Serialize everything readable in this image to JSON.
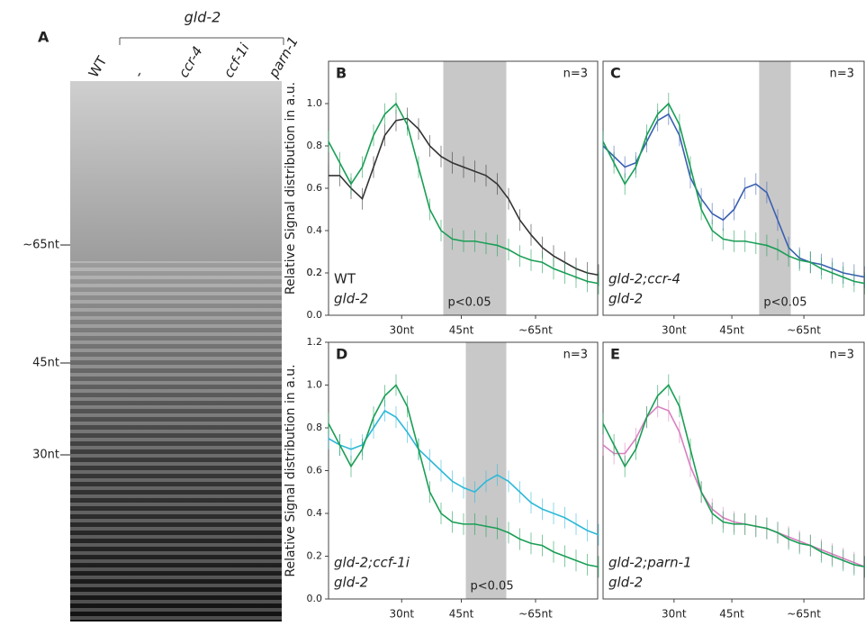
{
  "gel": {
    "panel": "A",
    "group_label": "gld-2",
    "lanes": [
      "WT",
      "-",
      "ccr-4",
      "ccf-1i",
      "parn-1"
    ],
    "markers": [
      "~65nt",
      "45nt",
      "30nt"
    ]
  },
  "chart_data": [
    {
      "type": "line",
      "panel": "B",
      "ylabel": "Relative Signal distribution in a.u.",
      "annotation": "n=3",
      "pvalue": "p<0.05",
      "shade": [
        10.2,
        15.8
      ],
      "x": [
        0,
        1,
        2,
        3,
        4,
        5,
        6,
        7,
        8,
        9,
        10,
        11,
        12,
        13,
        14,
        15,
        16,
        17,
        18,
        19,
        20,
        21,
        22,
        23,
        24
      ],
      "xlim": [
        0,
        24
      ],
      "xticks": [
        {
          "value": 6.5,
          "label": "30nt"
        },
        {
          "value": 11.8,
          "label": "45nt"
        },
        {
          "value": 18.4,
          "label": "~65nt"
        }
      ],
      "ylim": [
        0,
        1.2
      ],
      "yticks": [
        {
          "value": 0,
          "label": "0.0"
        },
        0.2,
        0.4,
        0.6,
        0.8,
        {
          "value": 1,
          "label": "1.0"
        },
        0.2
      ],
      "series": [
        {
          "name": "WT",
          "color": "#333333",
          "values": [
            0.66,
            0.66,
            0.6,
            0.55,
            0.7,
            0.85,
            0.92,
            0.93,
            0.88,
            0.8,
            0.75,
            0.72,
            0.7,
            0.68,
            0.66,
            0.62,
            0.55,
            0.45,
            0.38,
            0.32,
            0.28,
            0.25,
            0.22,
            0.2,
            0.19
          ]
        },
        {
          "name": "gld-2",
          "color": "#1a9e55",
          "values": [
            0.82,
            0.72,
            0.62,
            0.7,
            0.85,
            0.95,
            1.0,
            0.9,
            0.7,
            0.5,
            0.4,
            0.36,
            0.35,
            0.35,
            0.34,
            0.33,
            0.31,
            0.28,
            0.26,
            0.25,
            0.22,
            0.2,
            0.18,
            0.16,
            0.15
          ]
        }
      ]
    },
    {
      "type": "line",
      "panel": "C",
      "annotation": "n=3",
      "pvalue": "p<0.05",
      "shade": [
        14.3,
        17.2
      ],
      "x": [
        0,
        1,
        2,
        3,
        4,
        5,
        6,
        7,
        8,
        9,
        10,
        11,
        12,
        13,
        14,
        15,
        16,
        17,
        18,
        19,
        20,
        21,
        22,
        23,
        24
      ],
      "xlim": [
        0,
        24
      ],
      "xticks": [
        {
          "value": 6.5,
          "label": "30nt"
        },
        {
          "value": 11.8,
          "label": "45nt"
        },
        {
          "value": 18.4,
          "label": "~65nt"
        }
      ],
      "ylim": [
        0,
        1.2
      ],
      "series": [
        {
          "name": "gld-2;ccr-4",
          "color": "#3a5fb0",
          "values": [
            0.8,
            0.75,
            0.7,
            0.72,
            0.82,
            0.92,
            0.95,
            0.85,
            0.65,
            0.55,
            0.48,
            0.45,
            0.5,
            0.6,
            0.62,
            0.58,
            0.45,
            0.32,
            0.27,
            0.25,
            0.24,
            0.22,
            0.2,
            0.19,
            0.18
          ]
        },
        {
          "name": "gld-2",
          "color": "#1a9e55",
          "values": [
            0.82,
            0.72,
            0.62,
            0.7,
            0.85,
            0.95,
            1.0,
            0.9,
            0.7,
            0.5,
            0.4,
            0.36,
            0.35,
            0.35,
            0.34,
            0.33,
            0.31,
            0.28,
            0.26,
            0.25,
            0.22,
            0.2,
            0.18,
            0.16,
            0.15
          ]
        }
      ]
    },
    {
      "type": "line",
      "panel": "D",
      "ylabel": "Relative Signal distribution in a.u.",
      "annotation": "n=3",
      "pvalue": "p<0.05",
      "shade": [
        12.2,
        15.8
      ],
      "x": [
        0,
        1,
        2,
        3,
        4,
        5,
        6,
        7,
        8,
        9,
        10,
        11,
        12,
        13,
        14,
        15,
        16,
        17,
        18,
        19,
        20,
        21,
        22,
        23,
        24
      ],
      "xlim": [
        0,
        24
      ],
      "xticks": [
        {
          "value": 6.5,
          "label": "30nt"
        },
        {
          "value": 11.8,
          "label": "45nt"
        },
        {
          "value": 18.4,
          "label": "~65nt"
        }
      ],
      "ylim": [
        0,
        1.2
      ],
      "yticks": [
        {
          "value": 0,
          "label": "0.0"
        },
        0.2,
        0.4,
        0.6,
        0.8,
        {
          "value": 1,
          "label": "1.0"
        },
        1.2
      ],
      "series": [
        {
          "name": "gld-2;ccf-1i",
          "color": "#2fb8d8",
          "values": [
            0.75,
            0.72,
            0.7,
            0.72,
            0.8,
            0.88,
            0.85,
            0.78,
            0.7,
            0.65,
            0.6,
            0.55,
            0.52,
            0.5,
            0.55,
            0.58,
            0.55,
            0.5,
            0.45,
            0.42,
            0.4,
            0.38,
            0.35,
            0.32,
            0.3
          ]
        },
        {
          "name": "gld-2",
          "color": "#1a9e55",
          "values": [
            0.82,
            0.72,
            0.62,
            0.7,
            0.85,
            0.95,
            1.0,
            0.9,
            0.7,
            0.5,
            0.4,
            0.36,
            0.35,
            0.35,
            0.34,
            0.33,
            0.31,
            0.28,
            0.26,
            0.25,
            0.22,
            0.2,
            0.18,
            0.16,
            0.15
          ]
        }
      ]
    },
    {
      "type": "line",
      "panel": "E",
      "annotation": "n=3",
      "x": [
        0,
        1,
        2,
        3,
        4,
        5,
        6,
        7,
        8,
        9,
        10,
        11,
        12,
        13,
        14,
        15,
        16,
        17,
        18,
        19,
        20,
        21,
        22,
        23,
        24
      ],
      "xlim": [
        0,
        24
      ],
      "xticks": [
        {
          "value": 6.5,
          "label": "30nt"
        },
        {
          "value": 11.8,
          "label": "45nt"
        },
        {
          "value": 18.4,
          "label": "~65nt"
        }
      ],
      "ylim": [
        0,
        1.2
      ],
      "series": [
        {
          "name": "gld-2;parn-1",
          "color": "#d97fc0",
          "values": [
            0.72,
            0.68,
            0.68,
            0.75,
            0.85,
            0.9,
            0.88,
            0.78,
            0.62,
            0.5,
            0.42,
            0.38,
            0.36,
            0.35,
            0.34,
            0.33,
            0.31,
            0.29,
            0.27,
            0.25,
            0.23,
            0.21,
            0.19,
            0.17,
            0.15
          ]
        },
        {
          "name": "gld-2",
          "color": "#1a9e55",
          "values": [
            0.82,
            0.72,
            0.62,
            0.7,
            0.85,
            0.95,
            1.0,
            0.9,
            0.7,
            0.5,
            0.4,
            0.36,
            0.35,
            0.35,
            0.34,
            0.33,
            0.31,
            0.28,
            0.26,
            0.25,
            0.22,
            0.2,
            0.18,
            0.16,
            0.15
          ]
        }
      ]
    }
  ]
}
